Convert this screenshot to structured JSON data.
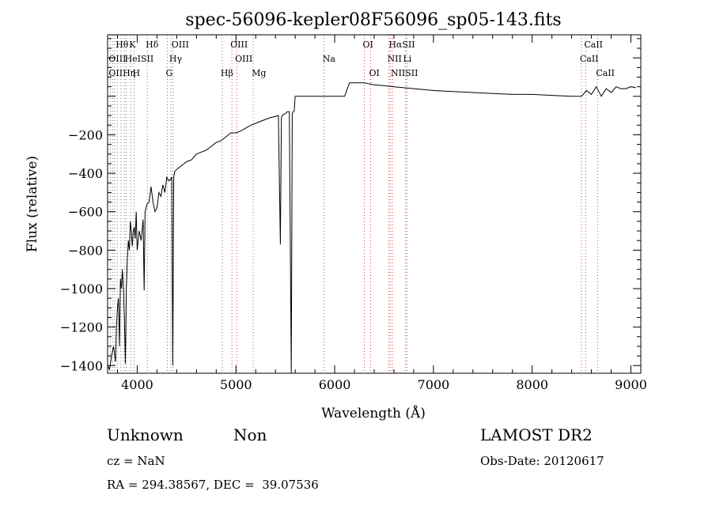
{
  "chart_data": {
    "type": "line",
    "title": "spec-56096-kepler08F56096_sp05-143.fits",
    "xlabel": "Wavelength (Å)",
    "ylabel": "Flux (relative)",
    "xlim": [
      3700,
      9100
    ],
    "ylim": [
      -1440,
      320
    ],
    "xticks": [
      4000,
      5000,
      6000,
      7000,
      8000,
      9000
    ],
    "yticks": [
      -1400,
      -1200,
      -1000,
      -800,
      -600,
      -400,
      -200
    ],
    "series": [
      {
        "x": [
          3700,
          3720,
          3740,
          3760,
          3780,
          3790,
          3800,
          3810,
          3820,
          3830,
          3840,
          3850,
          3860,
          3870,
          3880,
          3890,
          3900,
          3910,
          3920,
          3930,
          3940,
          3950,
          3960,
          3970,
          3980,
          3990,
          4000,
          4020,
          4040,
          4060,
          4070,
          4080,
          4100,
          4120,
          4140,
          4160,
          4180,
          4200,
          4220,
          4240,
          4260,
          4280,
          4300,
          4320,
          4340,
          4350,
          4360,
          4370,
          4380,
          4400,
          4450,
          4500,
          4550,
          4600,
          4650,
          4700,
          4750,
          4800,
          4850,
          4900,
          4950,
          5000,
          5050,
          5100,
          5150,
          5200,
          5250,
          5300,
          5350,
          5400,
          5430,
          5450,
          5460,
          5470,
          5480,
          5500,
          5520,
          5540,
          5560,
          5570,
          5580,
          5590,
          5600,
          5620,
          5640,
          5680,
          5700,
          5900,
          6000,
          6100,
          6150,
          6200,
          6250,
          6300,
          6400,
          6500,
          6600,
          6700,
          6800,
          6900,
          7000,
          7200,
          7400,
          7600,
          7800,
          8000,
          8200,
          8400,
          8500,
          8550,
          8600,
          8650,
          8700,
          8750,
          8800,
          8850,
          8900,
          8950,
          9000,
          9050
        ],
        "y": [
          -1400,
          -1420,
          -1350,
          -1300,
          -1380,
          -1200,
          -1100,
          -1050,
          -1300,
          -950,
          -1000,
          -900,
          -1000,
          -1150,
          -1390,
          -1000,
          -850,
          -750,
          -800,
          -650,
          -700,
          -780,
          -700,
          -680,
          -740,
          -600,
          -800,
          -700,
          -750,
          -640,
          -1010,
          -600,
          -560,
          -550,
          -470,
          -550,
          -600,
          -580,
          -500,
          -520,
          -460,
          -500,
          -420,
          -440,
          -430,
          -420,
          -1400,
          -420,
          -390,
          -380,
          -360,
          -340,
          -330,
          -300,
          -290,
          -280,
          -260,
          -240,
          -230,
          -210,
          -190,
          -190,
          -180,
          -165,
          -150,
          -140,
          -130,
          -120,
          -110,
          -105,
          -100,
          -770,
          -110,
          -100,
          -95,
          -90,
          -80,
          -80,
          -1440,
          -90,
          -80,
          -75,
          0,
          0,
          0,
          0,
          0,
          0,
          0,
          0,
          70,
          70,
          70,
          70,
          60,
          55,
          50,
          45,
          40,
          35,
          30,
          25,
          20,
          15,
          10,
          10,
          5,
          0,
          0,
          30,
          10,
          50,
          0,
          40,
          20,
          50,
          40,
          40,
          50,
          45
        ]
      }
    ],
    "lines_top": [
      {
        "label": "Hθ",
        "x": 3798,
        "row": 0,
        "col": "#666666"
      },
      {
        "label": "K",
        "x": 3934,
        "row": 0,
        "col": "#666666"
      },
      {
        "label": "Hδ",
        "x": 4102,
        "row": 0,
        "col": "#666666"
      },
      {
        "label": "OIII",
        "x": 4363,
        "row": 0,
        "col": "#cc3333"
      },
      {
        "label": "OIII",
        "x": 4959,
        "row": 0,
        "col": "#cc3333"
      },
      {
        "label": "OI",
        "x": 6300,
        "row": 0,
        "col": "#cc3333"
      },
      {
        "label": "HαSII",
        "x": 6563,
        "row": 0,
        "col": "#cc3333"
      },
      {
        "label": "CaII",
        "x": 8542,
        "row": 0,
        "col": "#cc3333"
      },
      {
        "label": "OIII",
        "x": 3727,
        "row": 1,
        "col": "#666666"
      },
      {
        "label": "HeISII",
        "x": 3889,
        "row": 1,
        "col": "#666666"
      },
      {
        "label": "Hγ",
        "x": 4340,
        "row": 1,
        "col": "#666666"
      },
      {
        "label": "OIII",
        "x": 5007,
        "row": 1,
        "col": "#cc3333"
      },
      {
        "label": "Na",
        "x": 5893,
        "row": 1,
        "col": "#cc3333"
      },
      {
        "label": "NII",
        "x": 6548,
        "row": 1,
        "col": "#cc3333"
      },
      {
        "label": "Li",
        "x": 6708,
        "row": 1,
        "col": "#cc3333"
      },
      {
        "label": "CaII",
        "x": 8498,
        "row": 1,
        "col": "#cc3333"
      },
      {
        "label": "OIIHη",
        "x": 3727,
        "row": 2,
        "col": "#666666"
      },
      {
        "label": "H",
        "x": 3968,
        "row": 2,
        "col": "#666666"
      },
      {
        "label": "G",
        "x": 4305,
        "row": 2,
        "col": "#666666"
      },
      {
        "label": "Hβ",
        "x": 4861,
        "row": 2,
        "col": "#666666"
      },
      {
        "label": "Mg",
        "x": 5175,
        "row": 2,
        "col": "#666666"
      },
      {
        "label": "OI",
        "x": 6364,
        "row": 2,
        "col": "#cc3333"
      },
      {
        "label": "NIISII",
        "x": 6584,
        "row": 2,
        "col": "#cc3333"
      },
      {
        "label": "CaII",
        "x": 8662,
        "row": 2,
        "col": "#cc3333"
      }
    ],
    "marker_lines": [
      3727,
      3750,
      3771,
      3798,
      3835,
      3869,
      3889,
      3934,
      3968,
      4102,
      4305,
      4340,
      4363,
      4861,
      4959,
      5007,
      5175,
      5893,
      6300,
      6364,
      6548,
      6563,
      6584,
      6717,
      6731,
      8498,
      8542,
      8662
    ],
    "grid": false
  },
  "footer": {
    "class": "Unknown",
    "subclass": "Non",
    "survey": "LAMOST DR2",
    "cz": "cz = NaN",
    "obs_date": "Obs-Date: 20120617",
    "coords": "RA = 294.38567, DEC =  39.07536"
  }
}
